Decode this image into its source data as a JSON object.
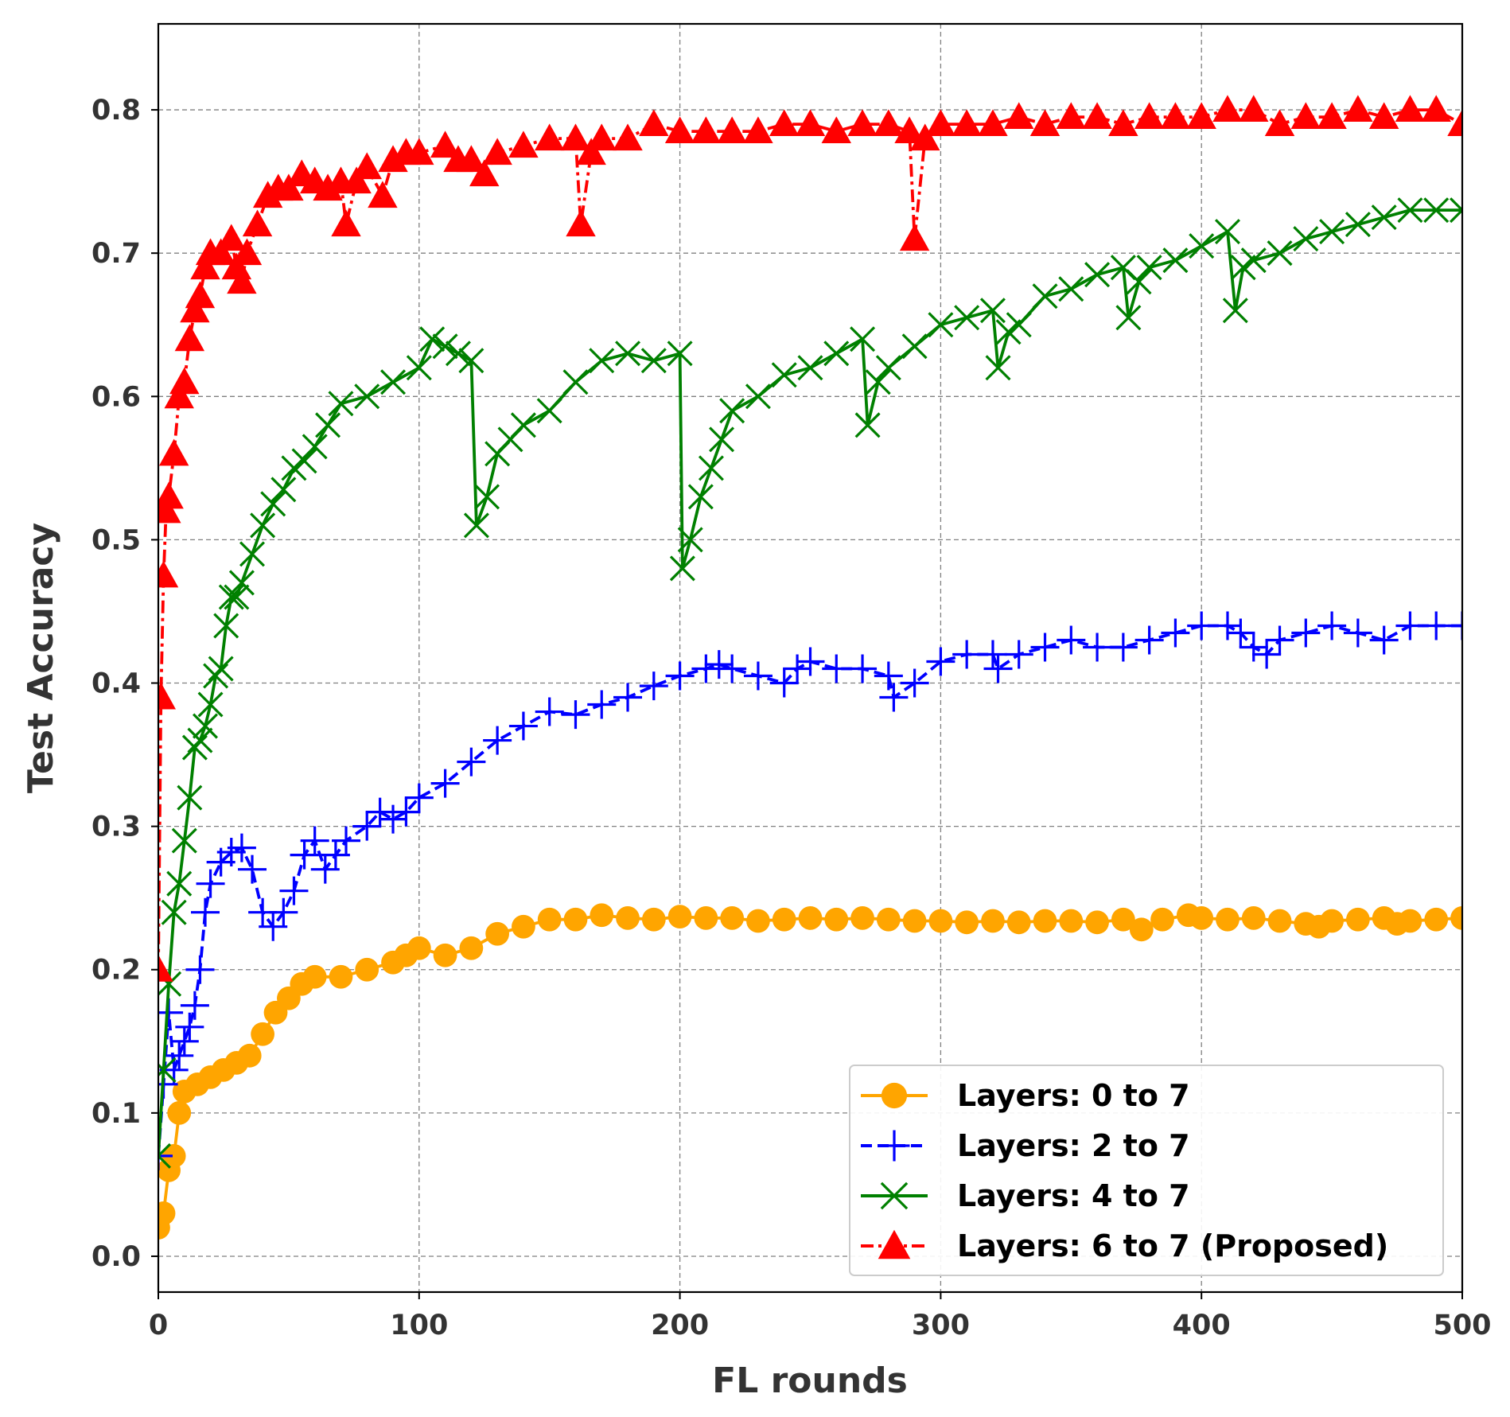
{
  "chart_data": {
    "type": "line",
    "title": "",
    "xlabel": "FL rounds",
    "ylabel": "Test Accuracy",
    "xlim": [
      0,
      500
    ],
    "ylim": [
      -0.025,
      0.86
    ],
    "xticks": [
      0,
      100,
      200,
      300,
      400,
      500
    ],
    "xtick_labels": [
      "0",
      "100",
      "200",
      "300",
      "400",
      "500"
    ],
    "yticks": [
      0.0,
      0.1,
      0.2,
      0.3,
      0.4,
      0.5,
      0.6,
      0.7,
      0.8
    ],
    "ytick_labels": [
      "0.0",
      "0.1",
      "0.2",
      "0.3",
      "0.4",
      "0.5",
      "0.6",
      "0.7",
      "0.8"
    ],
    "grid": true,
    "legend_position": "lower-right",
    "series": [
      {
        "name": "Layers: 0 to 7",
        "color": "#FFA500",
        "line_style": "solid",
        "marker": "circle",
        "points": [
          [
            0,
            0.02
          ],
          [
            2,
            0.03
          ],
          [
            4,
            0.06
          ],
          [
            6,
            0.07
          ],
          [
            8,
            0.1
          ],
          [
            10,
            0.115
          ],
          [
            15,
            0.12
          ],
          [
            20,
            0.125
          ],
          [
            25,
            0.13
          ],
          [
            30,
            0.135
          ],
          [
            35,
            0.14
          ],
          [
            40,
            0.155
          ],
          [
            45,
            0.17
          ],
          [
            50,
            0.18
          ],
          [
            55,
            0.19
          ],
          [
            60,
            0.195
          ],
          [
            70,
            0.195
          ],
          [
            80,
            0.2
          ],
          [
            90,
            0.205
          ],
          [
            95,
            0.21
          ],
          [
            100,
            0.215
          ],
          [
            110,
            0.21
          ],
          [
            120,
            0.215
          ],
          [
            130,
            0.225
          ],
          [
            140,
            0.23
          ],
          [
            150,
            0.235
          ],
          [
            160,
            0.235
          ],
          [
            170,
            0.238
          ],
          [
            180,
            0.236
          ],
          [
            190,
            0.235
          ],
          [
            200,
            0.237
          ],
          [
            210,
            0.236
          ],
          [
            220,
            0.236
          ],
          [
            230,
            0.234
          ],
          [
            240,
            0.235
          ],
          [
            250,
            0.236
          ],
          [
            260,
            0.235
          ],
          [
            270,
            0.236
          ],
          [
            280,
            0.235
          ],
          [
            290,
            0.234
          ],
          [
            300,
            0.234
          ],
          [
            310,
            0.233
          ],
          [
            320,
            0.234
          ],
          [
            330,
            0.233
          ],
          [
            340,
            0.234
          ],
          [
            350,
            0.234
          ],
          [
            360,
            0.233
          ],
          [
            370,
            0.235
          ],
          [
            377,
            0.228
          ],
          [
            385,
            0.235
          ],
          [
            395,
            0.238
          ],
          [
            400,
            0.236
          ],
          [
            410,
            0.235
          ],
          [
            420,
            0.236
          ],
          [
            430,
            0.234
          ],
          [
            440,
            0.232
          ],
          [
            445,
            0.23
          ],
          [
            450,
            0.234
          ],
          [
            460,
            0.235
          ],
          [
            470,
            0.236
          ],
          [
            475,
            0.232
          ],
          [
            480,
            0.234
          ],
          [
            490,
            0.235
          ],
          [
            500,
            0.236
          ]
        ]
      },
      {
        "name": "Layers: 2 to 7",
        "color": "#0000FF",
        "line_style": "dashed",
        "marker": "plus",
        "points": [
          [
            0,
            0.07
          ],
          [
            2,
            0.12
          ],
          [
            4,
            0.17
          ],
          [
            6,
            0.13
          ],
          [
            8,
            0.14
          ],
          [
            10,
            0.15
          ],
          [
            12,
            0.16
          ],
          [
            14,
            0.175
          ],
          [
            16,
            0.2
          ],
          [
            18,
            0.24
          ],
          [
            20,
            0.26
          ],
          [
            24,
            0.275
          ],
          [
            28,
            0.282
          ],
          [
            32,
            0.285
          ],
          [
            36,
            0.27
          ],
          [
            40,
            0.24
          ],
          [
            44,
            0.23
          ],
          [
            48,
            0.24
          ],
          [
            52,
            0.255
          ],
          [
            56,
            0.28
          ],
          [
            60,
            0.29
          ],
          [
            64,
            0.27
          ],
          [
            68,
            0.28
          ],
          [
            72,
            0.29
          ],
          [
            80,
            0.3
          ],
          [
            85,
            0.31
          ],
          [
            90,
            0.305
          ],
          [
            95,
            0.31
          ],
          [
            100,
            0.32
          ],
          [
            110,
            0.33
          ],
          [
            120,
            0.345
          ],
          [
            130,
            0.36
          ],
          [
            140,
            0.37
          ],
          [
            150,
            0.38
          ],
          [
            160,
            0.378
          ],
          [
            170,
            0.385
          ],
          [
            180,
            0.39
          ],
          [
            190,
            0.398
          ],
          [
            200,
            0.405
          ],
          [
            210,
            0.41
          ],
          [
            215,
            0.413
          ],
          [
            220,
            0.41
          ],
          [
            230,
            0.405
          ],
          [
            240,
            0.4
          ],
          [
            245,
            0.41
          ],
          [
            250,
            0.415
          ],
          [
            260,
            0.41
          ],
          [
            270,
            0.41
          ],
          [
            280,
            0.405
          ],
          [
            282,
            0.39
          ],
          [
            290,
            0.4
          ],
          [
            300,
            0.415
          ],
          [
            310,
            0.42
          ],
          [
            320,
            0.42
          ],
          [
            322,
            0.41
          ],
          [
            330,
            0.42
          ],
          [
            340,
            0.425
          ],
          [
            350,
            0.43
          ],
          [
            360,
            0.425
          ],
          [
            370,
            0.425
          ],
          [
            380,
            0.43
          ],
          [
            390,
            0.435
          ],
          [
            400,
            0.44
          ],
          [
            410,
            0.44
          ],
          [
            415,
            0.435
          ],
          [
            420,
            0.425
          ],
          [
            425,
            0.42
          ],
          [
            430,
            0.43
          ],
          [
            440,
            0.435
          ],
          [
            450,
            0.44
          ],
          [
            460,
            0.435
          ],
          [
            470,
            0.43
          ],
          [
            480,
            0.44
          ],
          [
            490,
            0.44
          ],
          [
            500,
            0.44
          ]
        ]
      },
      {
        "name": "Layers: 4 to 7",
        "color": "#008000",
        "line_style": "solid",
        "marker": "x",
        "points": [
          [
            0,
            0.07
          ],
          [
            2,
            0.13
          ],
          [
            4,
            0.19
          ],
          [
            6,
            0.24
          ],
          [
            8,
            0.26
          ],
          [
            10,
            0.29
          ],
          [
            12,
            0.32
          ],
          [
            14,
            0.355
          ],
          [
            16,
            0.36
          ],
          [
            18,
            0.37
          ],
          [
            20,
            0.385
          ],
          [
            22,
            0.405
          ],
          [
            24,
            0.41
          ],
          [
            26,
            0.44
          ],
          [
            28,
            0.46
          ],
          [
            30,
            0.46
          ],
          [
            32,
            0.47
          ],
          [
            36,
            0.49
          ],
          [
            40,
            0.51
          ],
          [
            44,
            0.525
          ],
          [
            48,
            0.535
          ],
          [
            52,
            0.55
          ],
          [
            56,
            0.555
          ],
          [
            60,
            0.565
          ],
          [
            65,
            0.58
          ],
          [
            70,
            0.595
          ],
          [
            80,
            0.6
          ],
          [
            90,
            0.61
          ],
          [
            100,
            0.62
          ],
          [
            105,
            0.64
          ],
          [
            110,
            0.635
          ],
          [
            115,
            0.63
          ],
          [
            120,
            0.625
          ],
          [
            122,
            0.51
          ],
          [
            126,
            0.53
          ],
          [
            130,
            0.56
          ],
          [
            135,
            0.57
          ],
          [
            140,
            0.58
          ],
          [
            150,
            0.59
          ],
          [
            160,
            0.61
          ],
          [
            170,
            0.625
          ],
          [
            180,
            0.63
          ],
          [
            190,
            0.625
          ],
          [
            200,
            0.63
          ],
          [
            201,
            0.48
          ],
          [
            204,
            0.5
          ],
          [
            208,
            0.53
          ],
          [
            212,
            0.55
          ],
          [
            216,
            0.57
          ],
          [
            220,
            0.59
          ],
          [
            230,
            0.6
          ],
          [
            240,
            0.615
          ],
          [
            250,
            0.62
          ],
          [
            260,
            0.63
          ],
          [
            270,
            0.64
          ],
          [
            272,
            0.58
          ],
          [
            276,
            0.61
          ],
          [
            280,
            0.62
          ],
          [
            290,
            0.635
          ],
          [
            300,
            0.65
          ],
          [
            310,
            0.655
          ],
          [
            320,
            0.66
          ],
          [
            322,
            0.62
          ],
          [
            326,
            0.645
          ],
          [
            330,
            0.65
          ],
          [
            340,
            0.67
          ],
          [
            350,
            0.675
          ],
          [
            360,
            0.685
          ],
          [
            370,
            0.69
          ],
          [
            372,
            0.655
          ],
          [
            376,
            0.68
          ],
          [
            380,
            0.69
          ],
          [
            390,
            0.695
          ],
          [
            400,
            0.705
          ],
          [
            410,
            0.715
          ],
          [
            413,
            0.66
          ],
          [
            416,
            0.69
          ],
          [
            420,
            0.695
          ],
          [
            430,
            0.7
          ],
          [
            440,
            0.71
          ],
          [
            450,
            0.715
          ],
          [
            460,
            0.72
          ],
          [
            470,
            0.725
          ],
          [
            480,
            0.73
          ],
          [
            490,
            0.73
          ],
          [
            500,
            0.73
          ]
        ]
      },
      {
        "name": "Layers: 6 to 7 (Proposed)",
        "color": "#FF0000",
        "line_style": "dashdot",
        "marker": "triangle",
        "points": [
          [
            0,
            0.2
          ],
          [
            1,
            0.39
          ],
          [
            2,
            0.475
          ],
          [
            3,
            0.52
          ],
          [
            4,
            0.53
          ],
          [
            6,
            0.56
          ],
          [
            8,
            0.6
          ],
          [
            10,
            0.61
          ],
          [
            12,
            0.64
          ],
          [
            14,
            0.66
          ],
          [
            16,
            0.67
          ],
          [
            18,
            0.69
          ],
          [
            20,
            0.7
          ],
          [
            24,
            0.7
          ],
          [
            28,
            0.71
          ],
          [
            30,
            0.69
          ],
          [
            32,
            0.68
          ],
          [
            34,
            0.7
          ],
          [
            38,
            0.72
          ],
          [
            42,
            0.74
          ],
          [
            46,
            0.745
          ],
          [
            50,
            0.745
          ],
          [
            55,
            0.755
          ],
          [
            60,
            0.75
          ],
          [
            65,
            0.745
          ],
          [
            70,
            0.75
          ],
          [
            72,
            0.72
          ],
          [
            76,
            0.75
          ],
          [
            80,
            0.76
          ],
          [
            86,
            0.74
          ],
          [
            90,
            0.765
          ],
          [
            95,
            0.77
          ],
          [
            100,
            0.77
          ],
          [
            110,
            0.775
          ],
          [
            115,
            0.765
          ],
          [
            120,
            0.765
          ],
          [
            125,
            0.755
          ],
          [
            130,
            0.77
          ],
          [
            140,
            0.775
          ],
          [
            150,
            0.78
          ],
          [
            160,
            0.78
          ],
          [
            162,
            0.72
          ],
          [
            166,
            0.77
          ],
          [
            170,
            0.78
          ],
          [
            180,
            0.78
          ],
          [
            190,
            0.79
          ],
          [
            200,
            0.785
          ],
          [
            210,
            0.785
          ],
          [
            220,
            0.785
          ],
          [
            230,
            0.785
          ],
          [
            240,
            0.79
          ],
          [
            250,
            0.79
          ],
          [
            260,
            0.785
          ],
          [
            270,
            0.79
          ],
          [
            280,
            0.79
          ],
          [
            288,
            0.785
          ],
          [
            290,
            0.71
          ],
          [
            294,
            0.78
          ],
          [
            300,
            0.79
          ],
          [
            310,
            0.79
          ],
          [
            320,
            0.79
          ],
          [
            330,
            0.795
          ],
          [
            340,
            0.79
          ],
          [
            350,
            0.795
          ],
          [
            360,
            0.795
          ],
          [
            370,
            0.79
          ],
          [
            380,
            0.795
          ],
          [
            390,
            0.795
          ],
          [
            400,
            0.795
          ],
          [
            410,
            0.8
          ],
          [
            420,
            0.8
          ],
          [
            430,
            0.79
          ],
          [
            440,
            0.795
          ],
          [
            450,
            0.795
          ],
          [
            460,
            0.8
          ],
          [
            470,
            0.795
          ],
          [
            480,
            0.8
          ],
          [
            490,
            0.8
          ],
          [
            500,
            0.79
          ]
        ]
      }
    ]
  }
}
